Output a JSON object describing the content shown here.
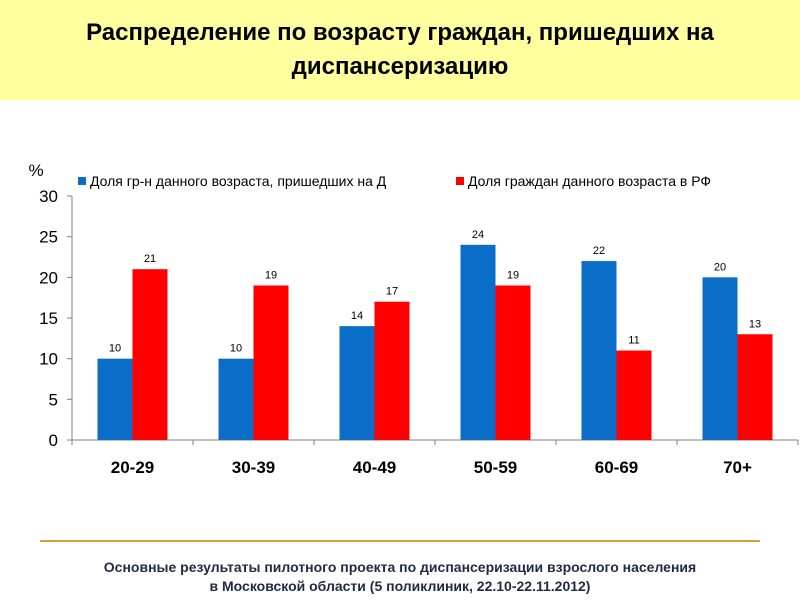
{
  "title": "Распределение по возрасту граждан, пришедших на диспансеризацию",
  "footer": {
    "line1": "Основные результаты пилотного проекта по диспансеризации взрослого населения",
    "line2": "в Московской области (5 поликлиник, 22.10-22.11.2012)"
  },
  "chart_data": {
    "type": "bar",
    "ylabel": "%",
    "ylim": [
      0,
      30
    ],
    "yticks": [
      0,
      5,
      10,
      15,
      20,
      25,
      30
    ],
    "categories": [
      "20-29",
      "30-39",
      "40-49",
      "50-59",
      "60-69",
      "70+"
    ],
    "series": [
      {
        "name": "Доля гр-н данного возраста, пришедших на Д",
        "values": [
          10,
          10,
          14,
          24,
          22,
          20
        ],
        "color": "#0a6ec8"
      },
      {
        "name": "Доля граждан данного возраста в РФ",
        "values": [
          21,
          19,
          17,
          19,
          11,
          13
        ],
        "color": "#ff0000"
      }
    ],
    "grid": false,
    "legend": "top"
  }
}
